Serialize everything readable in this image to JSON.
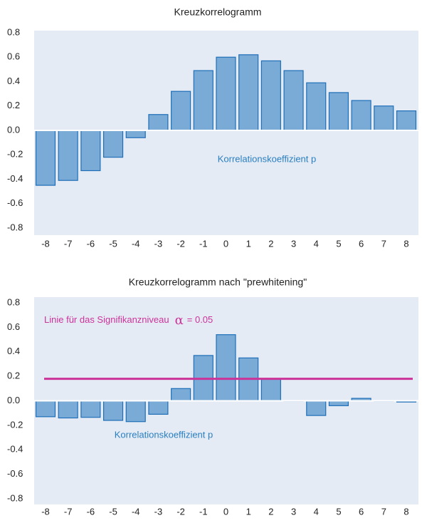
{
  "chart_data": [
    {
      "type": "bar",
      "title": "Kreuzkorrelogramm",
      "categories": [
        -8,
        -7,
        -6,
        -5,
        -4,
        -3,
        -2,
        -1,
        0,
        1,
        2,
        3,
        4,
        5,
        6,
        7,
        8
      ],
      "values": [
        -0.45,
        -0.41,
        -0.33,
        -0.22,
        -0.06,
        0.13,
        0.32,
        0.49,
        0.6,
        0.62,
        0.57,
        0.49,
        0.39,
        0.31,
        0.245,
        0.2,
        0.16
      ],
      "color": "#7aaad6",
      "edge_color": "#1f6fb8",
      "ylim": [
        -0.8,
        0.8
      ],
      "yticks": [
        -0.8,
        -0.6,
        -0.4,
        -0.2,
        {
          "value": 0,
          "label": "0.0"
        },
        0.2,
        0.4,
        0.6,
        0.8
      ],
      "annotation": "Korrelationskoeffizient p"
    },
    {
      "type": "bar",
      "title": "Kreuzkorrelogramm nach \"prewhitening\"",
      "categories": [
        -8,
        -7,
        -6,
        -5,
        -4,
        -3,
        -2,
        -1,
        0,
        1,
        2,
        3,
        4,
        5,
        6,
        7,
        8
      ],
      "values": [
        -0.13,
        -0.14,
        -0.135,
        -0.16,
        -0.17,
        -0.11,
        0.1,
        0.37,
        0.54,
        0.35,
        0.18,
        0,
        -0.12,
        -0.04,
        0.02,
        0,
        -0.01
      ],
      "color": "#7aaad6",
      "edge_color": "#1f6fb8",
      "ylim": [
        -0.8,
        0.8
      ],
      "yticks": [
        -0.8,
        -0.6,
        -0.4,
        -0.2,
        {
          "value": 0,
          "label": "0.0"
        },
        0.2,
        0.4,
        0.6,
        0.8
      ],
      "annotation": "Korrelationskoeffizient p",
      "threshold": {
        "value": 0.18,
        "color": "#cc3399",
        "label": "Linie für das Signifikanzniveau",
        "symbol": "α",
        "label_suffix": "= 0.05"
      }
    }
  ]
}
